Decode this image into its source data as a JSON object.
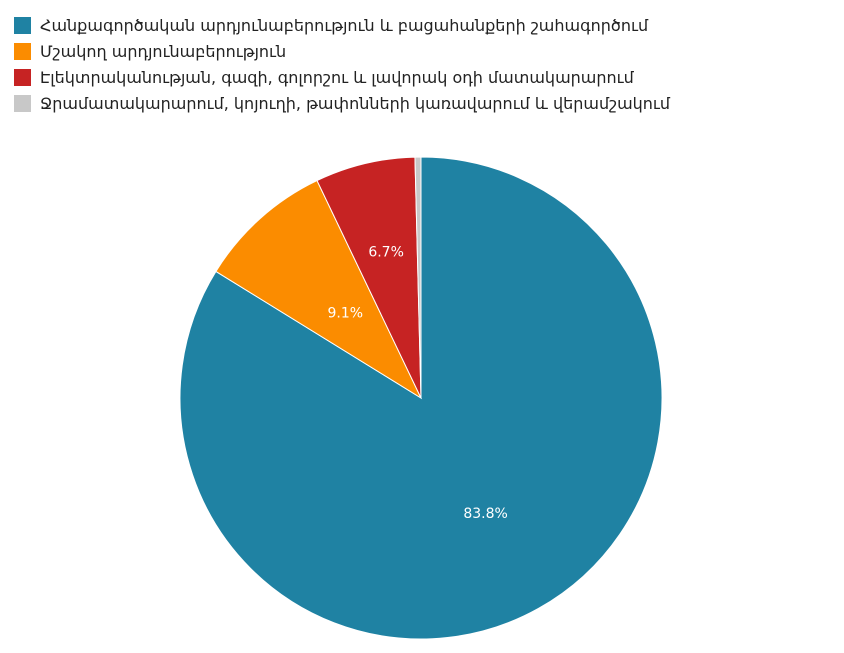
{
  "chart_data": {
    "type": "pie",
    "categories": [
      "Հանքագործական արդյունաբերություն և բացահանքերի շահագործում",
      "Մշակող արդյունաբերություն",
      "Էլեկտրականության, գազի, գոլորշու և լավորակ օդի մատակարարում",
      "Ջրամատակարարում, կոյուղի, թափոնների կառավարում և վերամշակում"
    ],
    "values": [
      83.8,
      9.1,
      6.7,
      0.4
    ],
    "data_labels": [
      "83.8%",
      "9.1%",
      "6.7%",
      ""
    ],
    "colors": [
      "#1f82a3",
      "#fb8c00",
      "#c62323",
      "#c8c8c8"
    ],
    "legend_position": "top-left"
  }
}
